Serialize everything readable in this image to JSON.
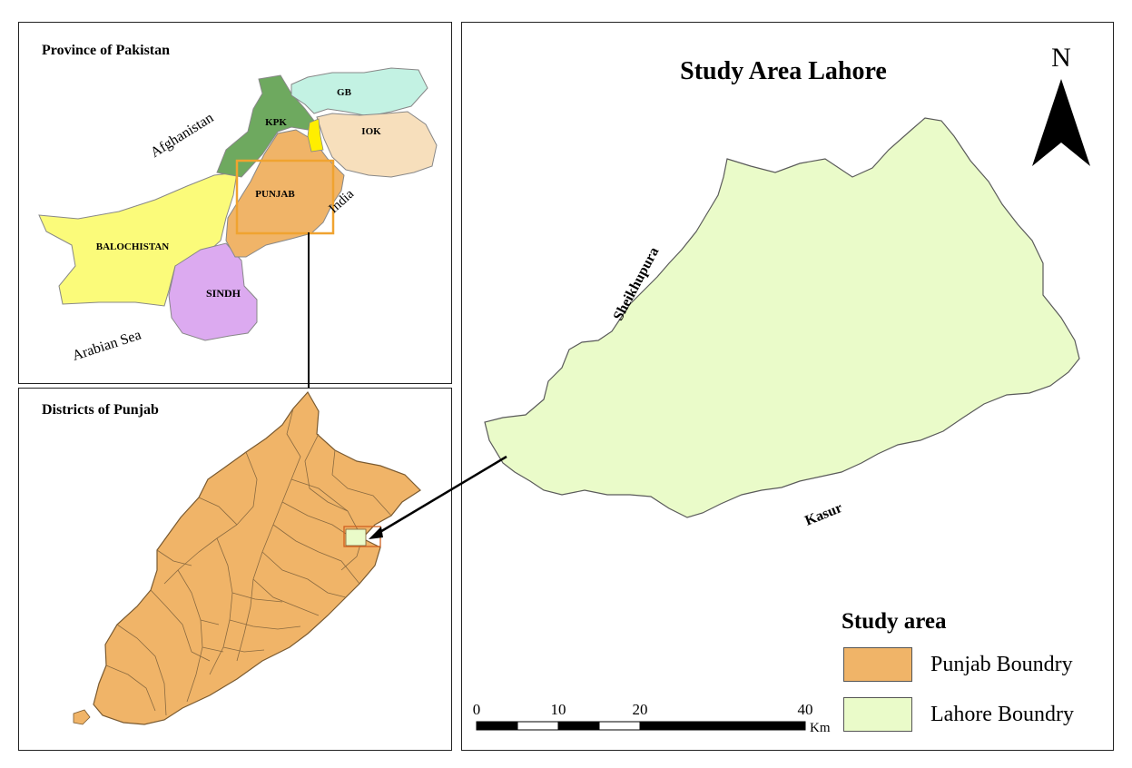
{
  "inset_pakistan": {
    "title": "Province of Pakistan",
    "provinces": [
      {
        "label": "GB",
        "color": "#c3f2e3"
      },
      {
        "label": "KPK",
        "color": "#6ea95f"
      },
      {
        "label": "IOK",
        "color": "#f7dfbc"
      },
      {
        "label": "PUNJAB",
        "color": "#f0b468"
      },
      {
        "label": "BALOCHISTAN",
        "color": "#fbfb7a"
      },
      {
        "label": "SINDH",
        "color": "#dcaaf0"
      }
    ],
    "neighbors": {
      "afghanistan": "Afghanistan",
      "india": "India",
      "sea": "Arabian Sea"
    }
  },
  "inset_punjab": {
    "title": "Districts of Punjab"
  },
  "main_map": {
    "title": "Study Area Lahore",
    "north_label": "N",
    "neighbors": {
      "north": "Sheikhupura",
      "south": "Kasur"
    },
    "scale_bar": {
      "ticks": [
        "0",
        "10",
        "20",
        "40"
      ],
      "unit": "Km"
    },
    "legend": {
      "title": "Study area",
      "items": [
        {
          "label": "Punjab Boundry",
          "color": "#f0b468"
        },
        {
          "label": "Lahore Boundry",
          "color": "#eafbc9"
        }
      ]
    }
  }
}
